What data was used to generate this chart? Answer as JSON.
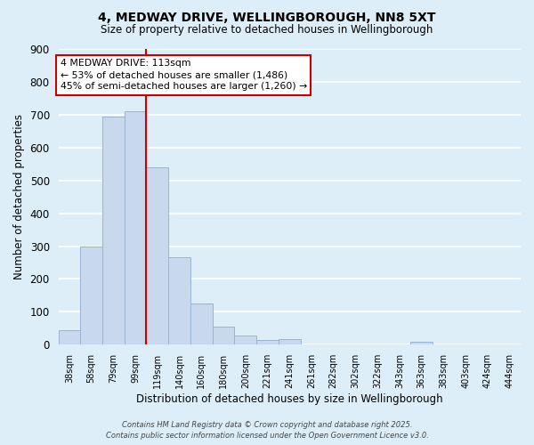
{
  "title": "4, MEDWAY DRIVE, WELLINGBOROUGH, NN8 5XT",
  "subtitle": "Size of property relative to detached houses in Wellingborough",
  "xlabel": "Distribution of detached houses by size in Wellingborough",
  "ylabel": "Number of detached properties",
  "bar_labels": [
    "38sqm",
    "58sqm",
    "79sqm",
    "99sqm",
    "119sqm",
    "140sqm",
    "160sqm",
    "180sqm",
    "200sqm",
    "221sqm",
    "241sqm",
    "261sqm",
    "282sqm",
    "302sqm",
    "322sqm",
    "343sqm",
    "363sqm",
    "383sqm",
    "403sqm",
    "424sqm",
    "444sqm"
  ],
  "bar_values": [
    45,
    300,
    695,
    710,
    540,
    265,
    125,
    55,
    28,
    15,
    18,
    2,
    2,
    1,
    0,
    0,
    8,
    0,
    0,
    0,
    2
  ],
  "bar_color": "#c8d9ee",
  "bar_edge_color": "#9ab3d0",
  "vline_x": 3.5,
  "vline_color": "#cc0000",
  "annotation_title": "4 MEDWAY DRIVE: 113sqm",
  "annotation_line1": "← 53% of detached houses are smaller (1,486)",
  "annotation_line2": "45% of semi-detached houses are larger (1,260) →",
  "ylim": [
    0,
    900
  ],
  "yticks": [
    0,
    100,
    200,
    300,
    400,
    500,
    600,
    700,
    800,
    900
  ],
  "bg_color": "#ddeef8",
  "grid_color": "#ffffff",
  "footer_line1": "Contains HM Land Registry data © Crown copyright and database right 2025.",
  "footer_line2": "Contains public sector information licensed under the Open Government Licence v3.0."
}
